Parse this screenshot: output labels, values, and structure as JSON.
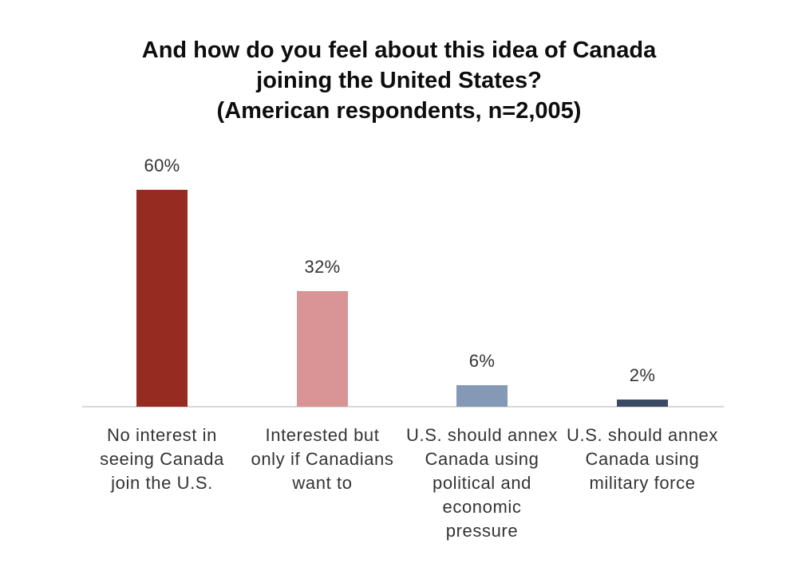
{
  "chart_data": {
    "type": "bar",
    "title": "And how do you feel about this idea of Canada joining the United States? (American respondents, n=2,005)",
    "title_lines": "And how do you feel about this idea of Canada\njoining the United States?\n(American respondents, n=2,005)",
    "categories": [
      "No interest in seeing Canada join the U.S.",
      "Interested but only if Canadians want to",
      "U.S. should annex Canada using political and economic pressure",
      "U.S. should annex Canada using military force"
    ],
    "category_lines": [
      "No interest in\nseeing Canada\njoin the U.S.",
      "Interested but\nonly if Canadians\nwant to",
      "U.S. should annex\nCanada using\npolitical and\neconomic\npressure",
      "U.S. should annex\nCanada using\nmilitary force"
    ],
    "values": [
      60,
      32,
      6,
      2
    ],
    "value_labels": [
      "60%",
      "32%",
      "6%",
      "2%"
    ],
    "bar_colors": [
      "#962B22",
      "#D99596",
      "#8399B5",
      "#3C4A63"
    ],
    "xlabel": "",
    "ylabel": "",
    "ylim": [
      0,
      66
    ],
    "grid": false,
    "legend": false,
    "axis_line_color": "#D9D9D9"
  }
}
